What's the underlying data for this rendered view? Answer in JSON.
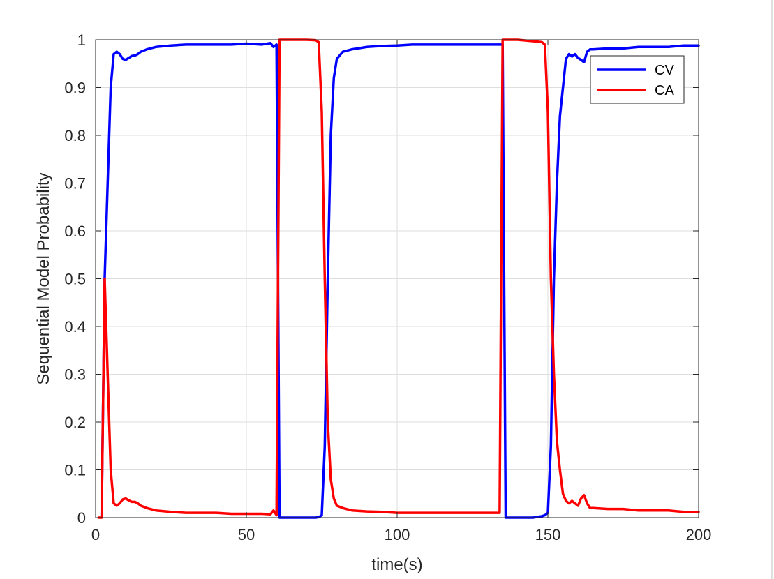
{
  "chart_data": {
    "type": "line",
    "title": "",
    "xlabel": "time(s)",
    "ylabel": "Sequential Model Probability",
    "xlim": [
      0,
      200
    ],
    "ylim": [
      0,
      1
    ],
    "xticks": [
      0,
      50,
      100,
      150,
      200
    ],
    "yticks": [
      0,
      0.1,
      0.2,
      0.3,
      0.4,
      0.5,
      0.6,
      0.7,
      0.8,
      0.9,
      1
    ],
    "xtick_labels": [
      "0",
      "50",
      "100",
      "150",
      "200"
    ],
    "ytick_labels": [
      "0",
      "0.1",
      "0.2",
      "0.3",
      "0.4",
      "0.5",
      "0.6",
      "0.7",
      "0.8",
      "0.9",
      "1"
    ],
    "grid": true,
    "legend_position": "top-right",
    "series": [
      {
        "name": "CV",
        "color": "#0000ff",
        "x": [
          2,
          3,
          4,
          5,
          6,
          7,
          8,
          9,
          10,
          11,
          12,
          13,
          14,
          15,
          17,
          20,
          25,
          30,
          35,
          40,
          45,
          50,
          55,
          58,
          59,
          60,
          61,
          62,
          65,
          70,
          73,
          74,
          75,
          76,
          77,
          78,
          79,
          80,
          82,
          85,
          90,
          95,
          100,
          105,
          110,
          115,
          120,
          125,
          130,
          134,
          135,
          136,
          140,
          145,
          148,
          149,
          150,
          151,
          152,
          153,
          154,
          155,
          156,
          157,
          158,
          159,
          160,
          161,
          162,
          163,
          164,
          165,
          170,
          175,
          180,
          185,
          190,
          195,
          200
        ],
        "y": [
          0.005,
          0.5,
          0.7,
          0.9,
          0.97,
          0.975,
          0.97,
          0.96,
          0.958,
          0.962,
          0.966,
          0.967,
          0.97,
          0.975,
          0.98,
          0.985,
          0.988,
          0.99,
          0.99,
          0.99,
          0.99,
          0.992,
          0.99,
          0.993,
          0.985,
          0.99,
          0.0,
          0.0,
          0.0,
          0.0,
          0.0,
          0.001,
          0.005,
          0.15,
          0.5,
          0.8,
          0.92,
          0.96,
          0.975,
          0.98,
          0.985,
          0.987,
          0.988,
          0.99,
          0.99,
          0.99,
          0.99,
          0.99,
          0.99,
          0.99,
          0.99,
          0.0,
          0.0,
          0.0,
          0.003,
          0.005,
          0.01,
          0.15,
          0.5,
          0.7,
          0.84,
          0.9,
          0.96,
          0.97,
          0.965,
          0.97,
          0.962,
          0.958,
          0.953,
          0.975,
          0.98,
          0.98,
          0.982,
          0.982,
          0.985,
          0.985,
          0.985,
          0.988,
          0.988
        ]
      },
      {
        "name": "CA",
        "color": "#ff0000",
        "x": [
          1,
          2,
          3,
          4,
          5,
          6,
          7,
          8,
          9,
          10,
          11,
          12,
          13,
          14,
          15,
          17,
          20,
          25,
          30,
          35,
          40,
          45,
          50,
          55,
          58,
          59,
          60,
          61,
          62,
          65,
          70,
          73,
          74,
          75,
          76,
          77,
          78,
          79,
          80,
          82,
          85,
          90,
          95,
          100,
          105,
          110,
          115,
          120,
          125,
          130,
          134,
          135,
          136,
          140,
          145,
          148,
          149,
          150,
          151,
          152,
          153,
          154,
          155,
          156,
          157,
          158,
          159,
          160,
          161,
          162,
          163,
          164,
          165,
          170,
          175,
          180,
          185,
          190,
          195,
          200
        ],
        "y": [
          0.0,
          0.0,
          0.5,
          0.3,
          0.1,
          0.03,
          0.025,
          0.03,
          0.038,
          0.04,
          0.036,
          0.033,
          0.033,
          0.03,
          0.025,
          0.02,
          0.015,
          0.012,
          0.01,
          0.01,
          0.01,
          0.008,
          0.008,
          0.008,
          0.007,
          0.015,
          0.005,
          1.0,
          1.0,
          1.0,
          1.0,
          0.999,
          0.995,
          0.85,
          0.5,
          0.2,
          0.08,
          0.04,
          0.025,
          0.02,
          0.015,
          0.013,
          0.012,
          0.01,
          0.01,
          0.01,
          0.01,
          0.01,
          0.01,
          0.01,
          0.01,
          1.0,
          1.0,
          1.0,
          0.997,
          0.995,
          0.99,
          0.85,
          0.5,
          0.3,
          0.16,
          0.1,
          0.05,
          0.035,
          0.03,
          0.035,
          0.03,
          0.025,
          0.04,
          0.047,
          0.03,
          0.02,
          0.02,
          0.018,
          0.018,
          0.015,
          0.015,
          0.015,
          0.012,
          0.012
        ]
      }
    ]
  }
}
